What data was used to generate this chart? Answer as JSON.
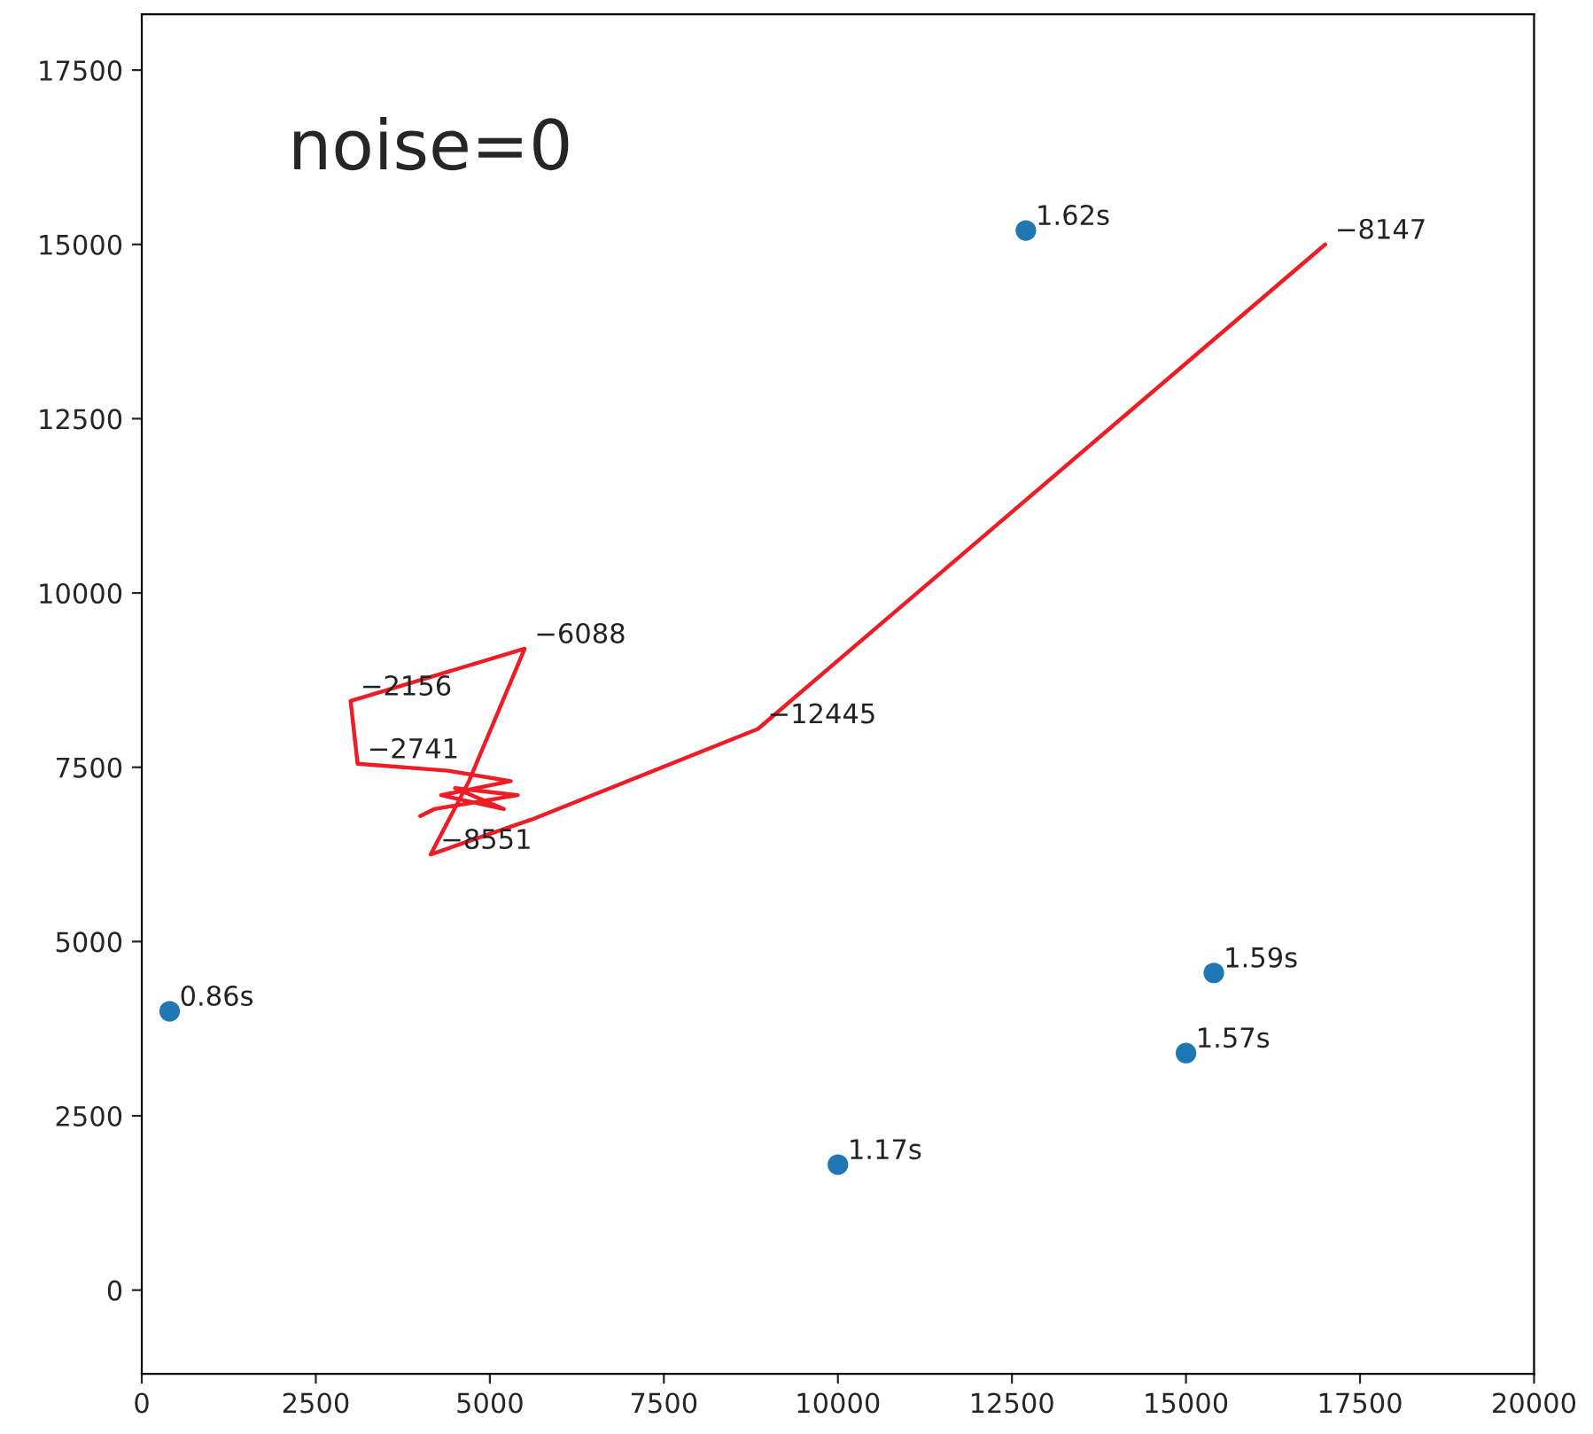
{
  "chart_data": {
    "type": "scatter",
    "annotations": [
      "noise=0",
      {
        "text": "0.86s",
        "x": 400,
        "y": 4000
      },
      {
        "text": "1.62s",
        "x": 12700,
        "y": 15200
      },
      {
        "text": "1.59s",
        "x": 15400,
        "y": 4550
      },
      {
        "text": "1.57s",
        "x": 15000,
        "y": 3400
      },
      {
        "text": "1.17s",
        "x": 10000,
        "y": 1800
      },
      {
        "text": "−8147",
        "x": 17000,
        "y": 15000
      },
      {
        "text": "−12445",
        "x": 8850,
        "y": 8050
      },
      {
        "text": "−8551",
        "x": 4150,
        "y": 6250
      },
      {
        "text": "−6088",
        "x": 5500,
        "y": 9200
      },
      {
        "text": "−2156",
        "x": 3000,
        "y": 8450
      },
      {
        "text": "−2741",
        "x": 3100,
        "y": 7550
      }
    ],
    "xlim": [
      0,
      20000
    ],
    "ylim": [
      -1200,
      18300
    ],
    "xticks": [
      0,
      2500,
      5000,
      7500,
      10000,
      12500,
      15000,
      17500,
      20000
    ],
    "yticks": [
      0,
      2500,
      5000,
      7500,
      10000,
      12500,
      15000,
      17500
    ],
    "grid": false,
    "legend": false,
    "series": [
      {
        "color": "#1f77b4",
        "marker": "circle",
        "x": [
          400,
          12700,
          15400,
          15000,
          10000
        ],
        "values": [
          4000,
          15200,
          4550,
          3400,
          1800
        ]
      },
      {
        "type": "line",
        "color": "#ee1c25",
        "marker": "none",
        "line_style": "solid",
        "x": [
          17000,
          8850,
          5600,
          4150,
          4700,
          5500,
          3000,
          3100,
          4400,
          5300,
          4300,
          5200,
          4500,
          5400,
          4200,
          4000
        ],
        "values": [
          15000,
          8050,
          6750,
          6250,
          7300,
          9200,
          8450,
          7550,
          7450,
          7300,
          7100,
          6900,
          7200,
          7100,
          6900,
          6800
        ]
      }
    ]
  }
}
